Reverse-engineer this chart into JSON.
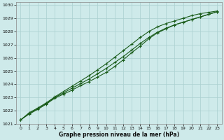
{
  "xlabel": "Graphe pression niveau de la mer (hPa)",
  "background_color": "#ceeaea",
  "grid_color": "#aacfcf",
  "line_color": "#1a5c1a",
  "xlim_min": -0.5,
  "xlim_max": 23.5,
  "ylim_min": 1021,
  "ylim_max": 1030.2,
  "xticks": [
    0,
    1,
    2,
    3,
    4,
    5,
    6,
    7,
    8,
    9,
    10,
    11,
    12,
    13,
    14,
    15,
    16,
    17,
    18,
    19,
    20,
    21,
    22,
    23
  ],
  "yticks": [
    1021,
    1022,
    1023,
    1024,
    1025,
    1026,
    1027,
    1028,
    1029,
    1030
  ],
  "line1_x": [
    0,
    1,
    2,
    3,
    4,
    5,
    6,
    7,
    8,
    9,
    10,
    11,
    12,
    13,
    14,
    15,
    16,
    17,
    18,
    19,
    20,
    21,
    22,
    23
  ],
  "line1_y": [
    1021.3,
    1021.8,
    1022.15,
    1022.55,
    1023.0,
    1023.35,
    1023.7,
    1024.05,
    1024.4,
    1024.8,
    1025.2,
    1025.65,
    1026.1,
    1026.6,
    1027.1,
    1027.55,
    1027.95,
    1028.25,
    1028.5,
    1028.7,
    1028.9,
    1029.1,
    1029.3,
    1029.5
  ],
  "line2_x": [
    0,
    1,
    2,
    3,
    4,
    5,
    6,
    7,
    8,
    9,
    10,
    11,
    12,
    13,
    14,
    15,
    16,
    17,
    18,
    19,
    20,
    21,
    22,
    23
  ],
  "line2_y": [
    1021.3,
    1021.75,
    1022.1,
    1022.5,
    1022.95,
    1023.25,
    1023.55,
    1023.9,
    1024.2,
    1024.55,
    1024.9,
    1025.35,
    1025.85,
    1026.4,
    1026.9,
    1027.45,
    1027.9,
    1028.2,
    1028.5,
    1028.7,
    1028.9,
    1029.1,
    1029.3,
    1029.5
  ],
  "line3_x": [
    0,
    1,
    2,
    3,
    4,
    5,
    6,
    7,
    8,
    9,
    10,
    11,
    12,
    13,
    14,
    15,
    16,
    17,
    18,
    19,
    20,
    21,
    22,
    23
  ],
  "line3_y": [
    1021.3,
    1021.85,
    1022.2,
    1022.6,
    1023.05,
    1023.45,
    1023.85,
    1024.25,
    1024.65,
    1025.1,
    1025.55,
    1026.05,
    1026.55,
    1027.05,
    1027.55,
    1028.0,
    1028.35,
    1028.6,
    1028.8,
    1029.0,
    1029.2,
    1029.35,
    1029.45,
    1029.55
  ],
  "tick_fontsize": 4.5,
  "xlabel_fontsize": 5.5,
  "linewidth": 0.8,
  "markersize": 3,
  "markeredgewidth": 0.8
}
